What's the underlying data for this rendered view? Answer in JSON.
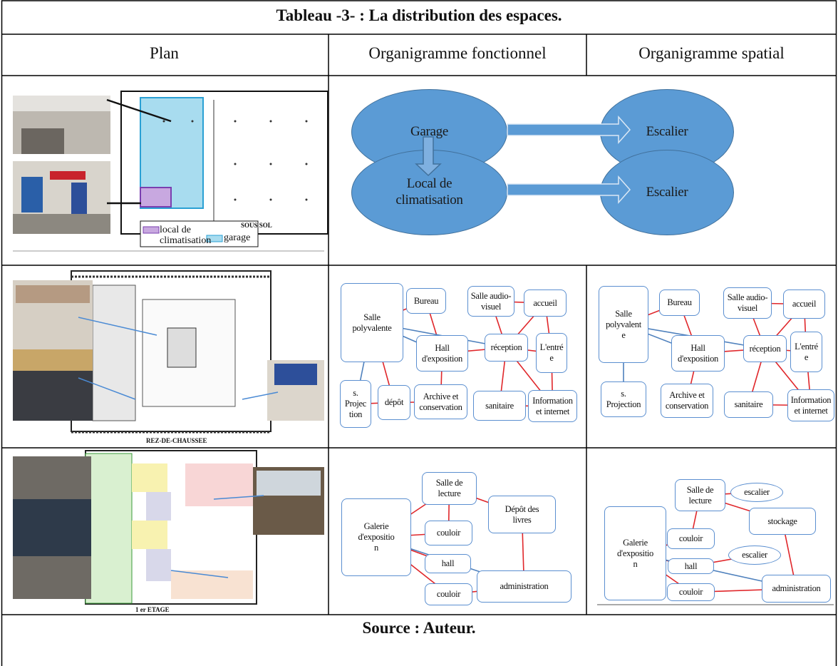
{
  "title": "Tableau -3- : La distribution des espaces.",
  "columns": [
    "Plan",
    "Organigramme fonctionnel",
    "Organigramme spatial"
  ],
  "rows": [
    {
      "plan": {
        "labels": [
          "SOUS SOL",
          "local de\nclimatisation",
          "garage"
        ]
      },
      "diagram": {
        "nodes": [
          "Garage",
          "Escalier",
          "Local de\nclimatisation",
          "Escalier"
        ]
      }
    },
    {
      "plan": {
        "labels": [
          "REZ-DE-CHAUSSEE"
        ]
      },
      "functional": {
        "nodes": [
          "Salle\npolyvalente",
          "Bureau",
          "Salle audio-\nvisuel",
          "accueil",
          "Hall\nd'exposition",
          "réception",
          "L'entré\ne",
          "s.\nProjec\ntion",
          "dépôt",
          "Archive et\nconservation",
          "sanitaire",
          "Information\net internet"
        ]
      },
      "spatial": {
        "nodes": [
          "Salle\npolyvalent\ne",
          "Bureau",
          "Salle audio-\nvisuel",
          "accueil",
          "Hall\nd'exposition",
          "réception",
          "L'entré\ne",
          "s.\nProjection",
          "Archive et\nconservation",
          "sanitaire",
          "Information\net internet"
        ]
      }
    },
    {
      "plan": {
        "labels": [
          "1 er ETAGE"
        ]
      },
      "functional": {
        "nodes": [
          "Galerie\nd'expositio\nn",
          "Salle de\nlecture",
          "Dépôt des\nlivres",
          "couloir",
          "hall",
          "couloir",
          "administration"
        ]
      },
      "spatial": {
        "nodes": [
          "Galerie\nd'expositio\nn",
          "Salle de\nlecture",
          "escalier",
          "stockage",
          "couloir",
          "escalier",
          "hall",
          "couloir",
          "administration"
        ]
      }
    }
  ],
  "source": "Source : Auteur."
}
